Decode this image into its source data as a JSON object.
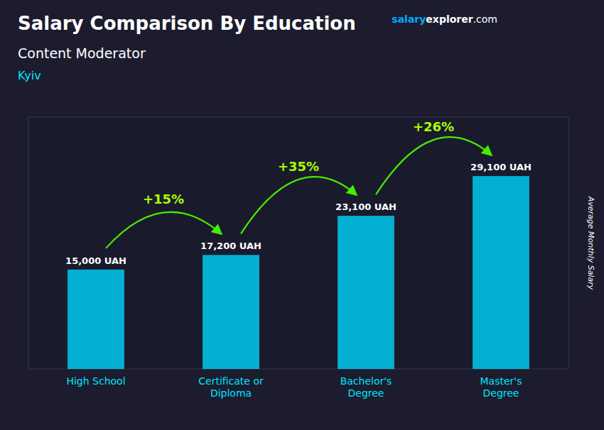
{
  "chart_data": {
    "type": "bar",
    "title": "Salary Comparison By Education",
    "subtitle": "Content Moderator",
    "ylabel": "Average Monthly Salary",
    "categories": [
      "High School",
      "Certificate or\nDiploma",
      "Bachelor's\nDegree",
      "Master's\nDegree"
    ],
    "values": [
      15000,
      17200,
      23100,
      29100
    ],
    "value_labels": [
      "15,000 UAH",
      "17,200 UAH",
      "23,100 UAH",
      "29,100 UAH"
    ],
    "data_labels": true,
    "color": "#00C5E8",
    "ylim": [
      0,
      38000
    ],
    "tick_labels": "x",
    "grid": false,
    "annotations": [
      {
        "text": "Kyiv"
      },
      {
        "text": "salary"
      },
      {
        "text": "explorer"
      },
      {
        "text": ".com"
      },
      {
        "text": "+15%",
        "from": "High School",
        "to": "Certificate or\nDiploma"
      },
      {
        "text": "+35%",
        "from": "Certificate or\nDiploma",
        "to": "Bachelor's\nDegree"
      },
      {
        "text": "+26%",
        "from": "Bachelor's\nDegree",
        "to": "Master's\nDegree"
      }
    ]
  }
}
